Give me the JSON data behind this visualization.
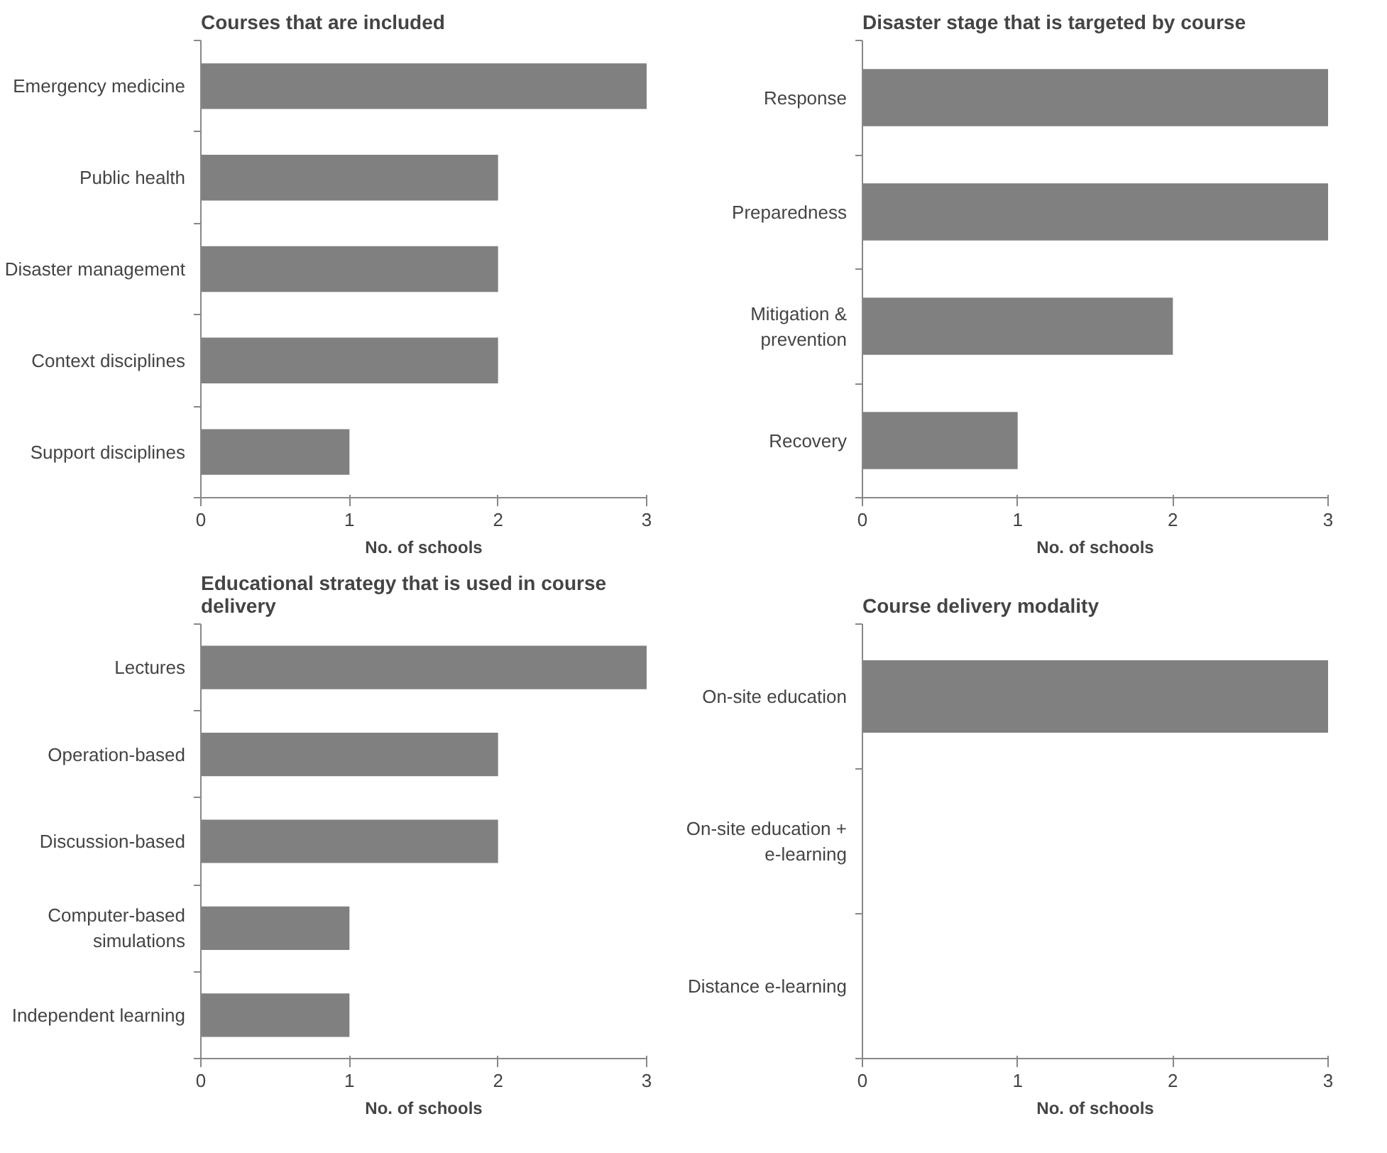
{
  "chart_data": [
    {
      "type": "bar",
      "orientation": "horizontal",
      "title": "Courses that are included",
      "xlabel": "No. of schools",
      "categories": [
        "Emergency medicine",
        "Public health",
        "Disaster management",
        "Context disciplines",
        "Support disciplines"
      ],
      "values": [
        3,
        2,
        2,
        2,
        1
      ],
      "color": "#808080",
      "xlim": [
        0,
        3
      ],
      "xticks": [
        0,
        1,
        2,
        3
      ],
      "grid": false
    },
    {
      "type": "bar",
      "orientation": "horizontal",
      "title": "Disaster stage that is targeted by course",
      "xlabel": "No. of schools",
      "categories": [
        "Response",
        "Preparedness",
        "Mitigation & prevention",
        "Recovery"
      ],
      "values": [
        3,
        3,
        2,
        1
      ],
      "color": "#808080",
      "xlim": [
        0,
        3
      ],
      "xticks": [
        0,
        1,
        2,
        3
      ],
      "grid": false
    },
    {
      "type": "bar",
      "orientation": "horizontal",
      "title": "Educational strategy that is used in course delivery",
      "xlabel": "No. of schools",
      "categories": [
        "Lectures",
        "Operation-based",
        "Discussion-based",
        "Computer-based simulations",
        "Independent learning"
      ],
      "values": [
        3,
        2,
        2,
        1,
        1
      ],
      "color": "#808080",
      "xlim": [
        0,
        3
      ],
      "xticks": [
        0,
        1,
        2,
        3
      ],
      "grid": false
    },
    {
      "type": "bar",
      "orientation": "horizontal",
      "title": "Course delivery modality",
      "xlabel": "No. of schools",
      "categories": [
        "On-site education",
        "On-site education + e-learning",
        "Distance e-learning"
      ],
      "values": [
        3,
        0,
        0
      ],
      "color": "#808080",
      "xlim": [
        0,
        3
      ],
      "xticks": [
        0,
        1,
        2,
        3
      ],
      "grid": false
    }
  ]
}
